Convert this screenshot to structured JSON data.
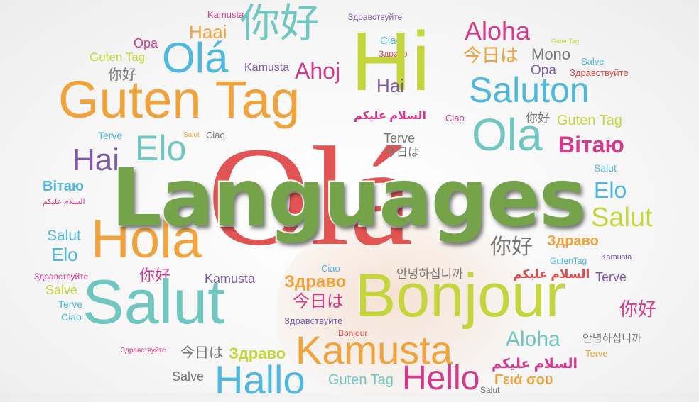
{
  "title": "Languages",
  "colors": {
    "title_green": "#74a34a",
    "orange": "#f2a23a",
    "yellow_green": "#c4d63b",
    "blue": "#4fb8df",
    "teal": "#6fc7c0",
    "purple": "#7d5aa6",
    "magenta": "#d6388b",
    "red": "#e14b4b",
    "gray": "#777777"
  },
  "words": {
    "w01": "Kamusta",
    "w02": "你好",
    "w03": "Здравствуйте",
    "w04": "Haai",
    "w05": "Opa",
    "w06": "Ciao",
    "w07": "Здраво",
    "w08": "Aloha",
    "w09": "GutenTag",
    "w10": "Guten Tag",
    "w11": "Olá",
    "w12": "Hi",
    "w13": "今日は",
    "w14": "Mono",
    "w15": "Salve",
    "w16": "你好",
    "w17": "Kamusta",
    "w18": "Ahoj",
    "w19": "Opa",
    "w20": "Здравствуйте",
    "w21": "Guten Tag",
    "w22": "Hai",
    "w23": "Saluton",
    "w24": "السلام عليكم",
    "w25": "Ciao",
    "w26": "你好",
    "w27": "Guten Tag",
    "w28": "Terve",
    "w29": "Salut",
    "w30": "Ciao",
    "w31": "Elo",
    "w32": "Terve",
    "w33": "Ola",
    "w34": "Вітаю",
    "w35": "Hai",
    "w36": "今日は",
    "w37": "Salut",
    "w38": "Вітаю",
    "w39": "السلام عليكم",
    "w40": "Elo",
    "w41": "Salut",
    "w42": "Hola",
    "w43": "Salut",
    "w44": "Elo",
    "w45": "你好",
    "w46": "Здраво",
    "w47": "GutenTag",
    "w48": "Kamusta",
    "w49": "Здравствуйте",
    "w50": "你好",
    "w51": "Kamusta",
    "w52": "Ciao",
    "w53": "안녕하십니까",
    "w54": "السلام عليكم",
    "w55": "Terve",
    "w56": "Salve",
    "w57": "Salut",
    "w58": "Здраво",
    "w59": "Bonjour",
    "w60": "Terve",
    "w61": "今日は",
    "w62": "你好",
    "w63": "Ciao",
    "w64": "Здравствуйте",
    "w65": "Bonjour",
    "w66": "Aloha",
    "w67": "안녕하십니까",
    "w68": "Здравствуйте",
    "w69": "今日は",
    "w70": "Здраво",
    "w71": "Kamusta",
    "w72": "Terve",
    "w73": "Salve",
    "w74": "Hallo",
    "w75": "Guten Tag",
    "w76": "Hello",
    "w77": "السلام عليكم",
    "w78": "Γειά σου",
    "w79": "Salut",
    "w80": "Olá"
  }
}
